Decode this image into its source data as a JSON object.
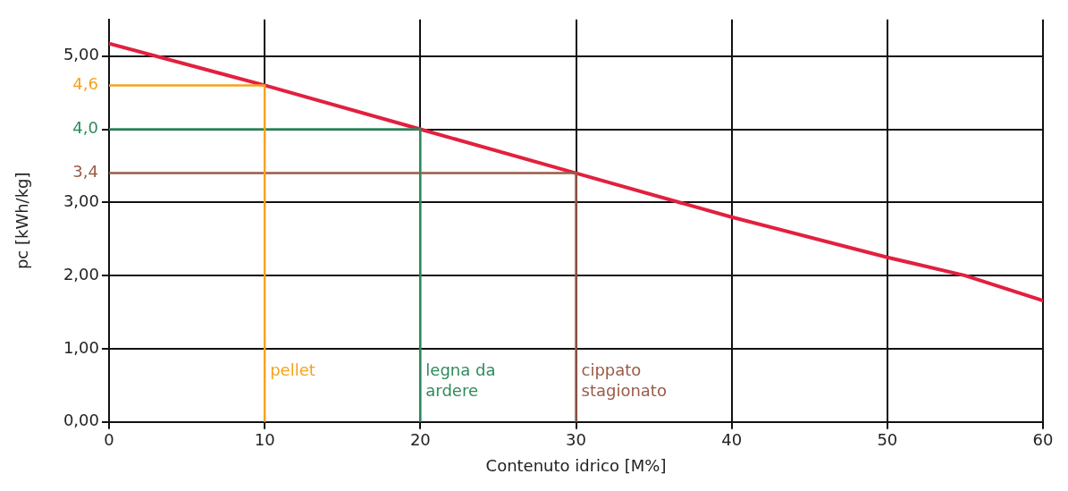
{
  "chart_data": {
    "type": "line",
    "xlabel": "Contenuto idrico [M%]",
    "ylabel": "pc [kWh/kg]",
    "xlim": [
      0,
      60
    ],
    "ylim": [
      0,
      5.5
    ],
    "xticks": [
      0,
      10,
      20,
      30,
      40,
      50,
      60
    ],
    "yticks": [
      {
        "value": 0,
        "label": "0,00"
      },
      {
        "value": 1,
        "label": "1,00"
      },
      {
        "value": 2,
        "label": "2,00"
      },
      {
        "value": 3,
        "label": "3,00"
      },
      {
        "value": 4,
        "label": null
      },
      {
        "value": 5,
        "label": "5,00"
      }
    ],
    "grid": true,
    "legend": false,
    "marker": "none",
    "line_style": "solid",
    "series": [
      {
        "name": "pellet",
        "color": "#f5a21f",
        "x": [
          0,
          10,
          10
        ],
        "values": [
          4.6,
          4.6,
          0
        ],
        "value_labels": [
          "4,6",
          null,
          null
        ]
      },
      {
        "name": "legna da ardere",
        "color": "#2f8a5c",
        "x": [
          0,
          20,
          20
        ],
        "values": [
          4.0,
          4.0,
          0
        ],
        "value_labels": [
          "4,0",
          null,
          null
        ]
      },
      {
        "name": "cippato stagionato",
        "color": "#9a5a48",
        "x": [
          0,
          30,
          30
        ],
        "values": [
          3.4,
          3.4,
          0
        ],
        "value_labels": [
          "3,4",
          null,
          null
        ]
      },
      {
        "color": "#e2203f",
        "x": [
          0,
          10,
          20,
          30,
          40,
          50,
          55,
          60
        ],
        "values": [
          5.17,
          4.6,
          4.0,
          3.4,
          2.8,
          2.25,
          2.0,
          1.66
        ]
      }
    ]
  }
}
